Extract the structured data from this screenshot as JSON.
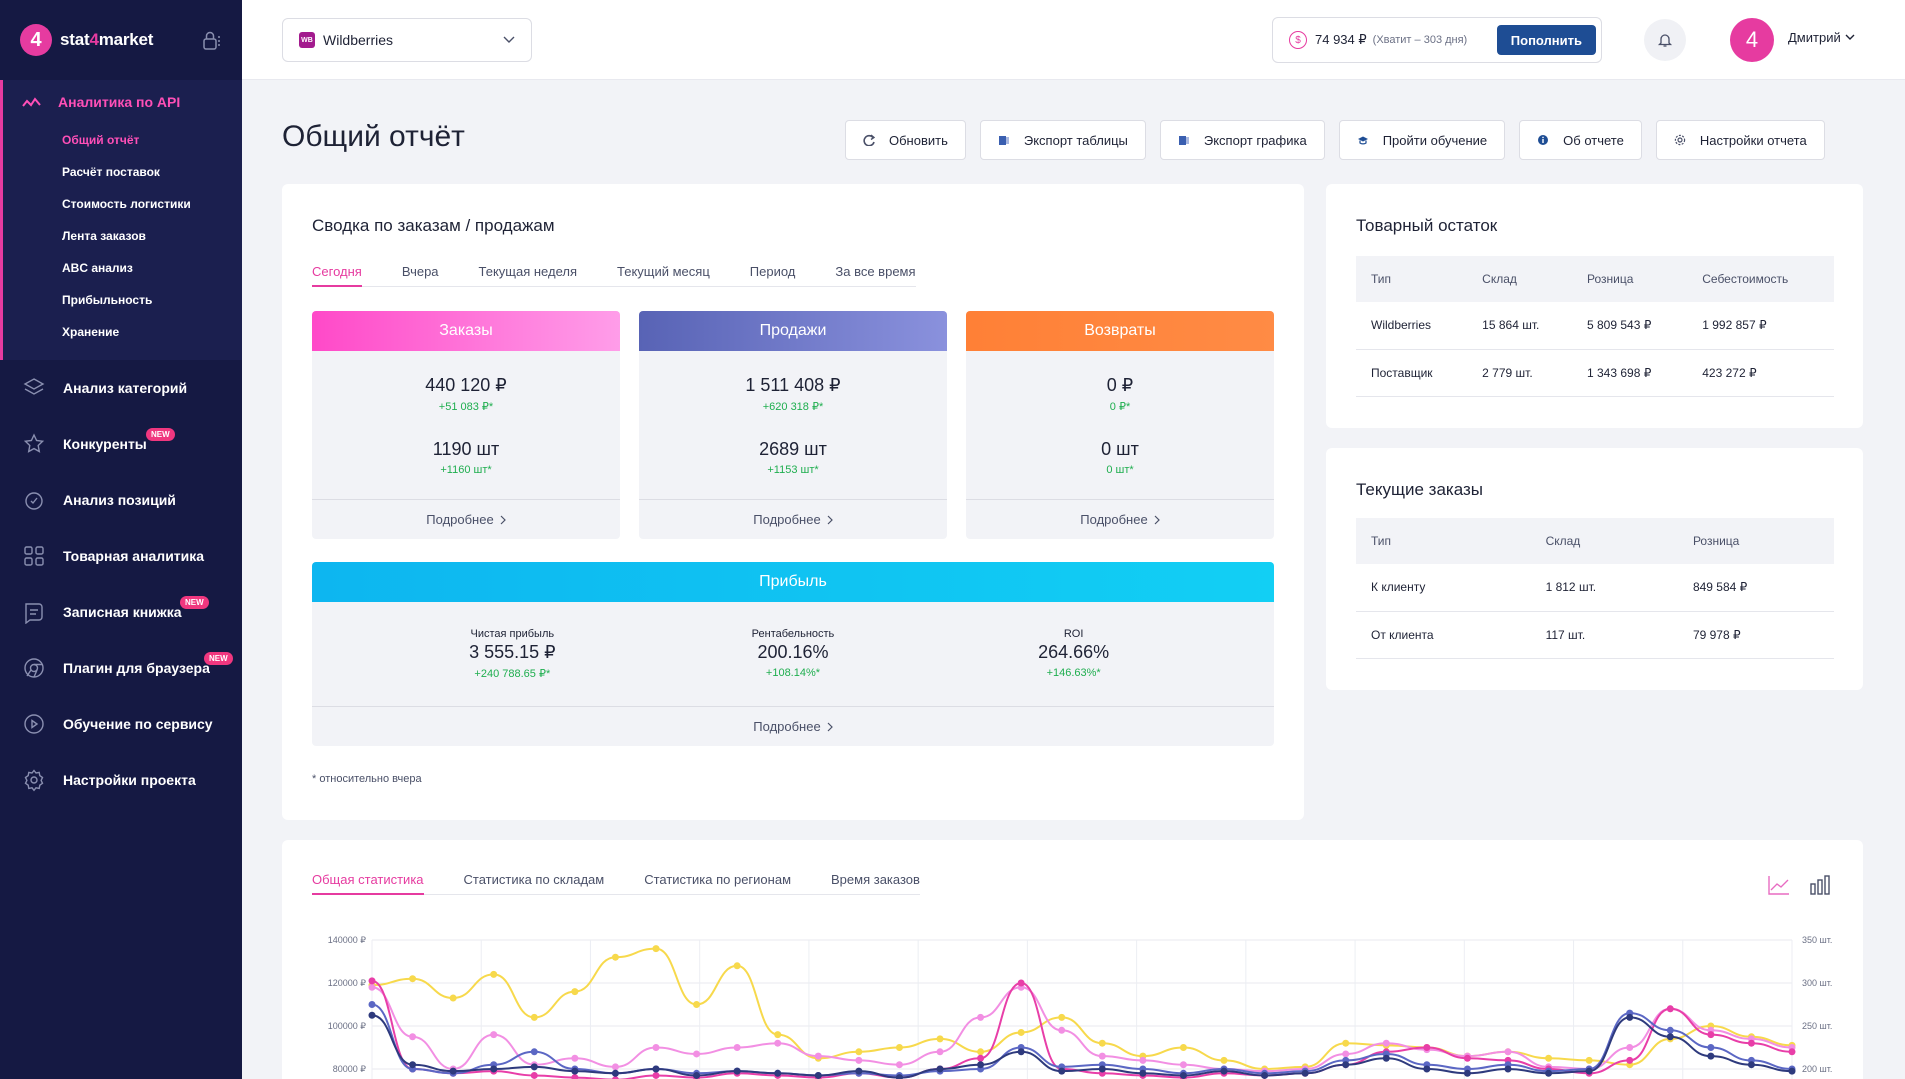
{
  "brand": {
    "mark": "4",
    "name_pre": "stat",
    "name_accent": "4",
    "name_post": "market"
  },
  "sidebar": {
    "active_section": "Аналитика по API",
    "sub_items": [
      "Общий отчёт",
      "Расчёт поставок",
      "Стоимость логистики",
      "Лента заказов",
      "ABC анализ",
      "Прибыльность",
      "Хранение"
    ],
    "items": [
      {
        "label": "Анализ категорий",
        "icon": "layers-icon",
        "badge": ""
      },
      {
        "label": "Конкуренты",
        "icon": "star-icon",
        "badge": "NEW"
      },
      {
        "label": "Анализ позиций",
        "icon": "position-icon",
        "badge": ""
      },
      {
        "label": "Товарная аналитика",
        "icon": "grid-icon",
        "badge": ""
      },
      {
        "label": "Записная книжка",
        "icon": "notebook-icon",
        "badge": "NEW"
      },
      {
        "label": "Плагин для браузера",
        "icon": "chrome-icon",
        "badge": "NEW"
      },
      {
        "label": "Обучение по сервису",
        "icon": "play-icon",
        "badge": ""
      },
      {
        "label": "Настройки проекта",
        "icon": "gear-icon",
        "badge": ""
      }
    ]
  },
  "topbar": {
    "marketplace": "Wildberries",
    "marketplace_badge": "WB",
    "balance": "74 934 ₽",
    "balance_note": "(Хватит – 303 дня)",
    "topup_label": "Пополнить",
    "avatar_initial": "4",
    "user_name": "Дмитрий"
  },
  "page": {
    "title": "Общий отчёт",
    "toolbar": [
      "Обновить",
      "Экспорт таблицы",
      "Экспорт графика",
      "Пройти обучение",
      "Об отчете",
      "Настройки отчета"
    ]
  },
  "summary": {
    "title": "Сводка по заказам / продажам",
    "tabs": [
      "Сегодня",
      "Вчера",
      "Текущая неделя",
      "Текущий месяц",
      "Период",
      "За все время"
    ],
    "active_tab": 0,
    "cards": [
      {
        "title": "Заказы",
        "amount": "440 120 ₽",
        "amount_delta": "+51 083 ₽*",
        "count": "1190 шт",
        "count_delta": "+1160 шт*",
        "more": "Подробнее",
        "color_from": "#ff49c8",
        "color_to": "#ff9de9"
      },
      {
        "title": "Продажи",
        "amount": "1 511 408 ₽",
        "amount_delta": "+620 318 ₽*",
        "count": "2689 шт",
        "count_delta": "+1153 шт*",
        "more": "Подробнее",
        "color_from": "#5863b5",
        "color_to": "#8a91dd"
      },
      {
        "title": "Возвраты",
        "amount": "0 ₽",
        "amount_delta": "0 ₽*",
        "count": "0 шт",
        "count_delta": "0 шт*",
        "more": "Подробнее",
        "color_from": "#ff8036",
        "color_to": "#ff8b45"
      }
    ],
    "profit": {
      "title": "Прибыль",
      "cols": [
        {
          "label": "Чистая прибыль",
          "value": "3 555.15 ₽",
          "delta": "+240 788.65 ₽*"
        },
        {
          "label": "Рентабельность",
          "value": "200.16%",
          "delta": "+108.14%*"
        },
        {
          "label": "ROI",
          "value": "264.66%",
          "delta": "+146.63%*"
        }
      ],
      "more": "Подробнее"
    },
    "footnote": "* относительно вчера"
  },
  "stock": {
    "title": "Товарный остаток",
    "headers": [
      "Тип",
      "Склад",
      "Розница",
      "Себестоимость"
    ],
    "rows": [
      [
        "Wildberries",
        "15 864 шт.",
        "5 809 543 ₽",
        "1 992 857 ₽"
      ],
      [
        "Поставщик",
        "2 779 шт.",
        "1 343 698 ₽",
        "423 272 ₽"
      ]
    ]
  },
  "orders": {
    "title": "Текущие заказы",
    "headers": [
      "Тип",
      "Склад",
      "Розница"
    ],
    "rows": [
      [
        "К клиенту",
        "1 812 шт.",
        "849 584 ₽"
      ],
      [
        "От клиента",
        "117 шт.",
        "79 978 ₽"
      ]
    ]
  },
  "stats": {
    "tabs": [
      "Общая статистика",
      "Статистика по складам",
      "Статистика по регионам",
      "Время заказов"
    ],
    "active_tab": 0
  },
  "chart_data": {
    "type": "line",
    "title": "",
    "y_left_ticks": [
      "140000 ₽",
      "120000 ₽",
      "100000 ₽",
      "80000 ₽"
    ],
    "y_right_ticks": [
      "350 шт.",
      "300 шт.",
      "250 шт.",
      "200 шт."
    ],
    "y_left_range": [
      80000,
      140000
    ],
    "series": [
      {
        "color": "#f7d94c",
        "values": [
          119000,
          122000,
          113000,
          124000,
          104000,
          116000,
          132000,
          136000,
          110000,
          128000,
          96000,
          85000,
          88000,
          90000,
          94000,
          88000,
          97000,
          104000,
          92000,
          86000,
          90000,
          84000,
          80000,
          81000,
          92000,
          91000,
          90000,
          86000,
          88000,
          85000,
          84000,
          82000,
          94000,
          100000,
          95000,
          91000
        ]
      },
      {
        "color": "#f28fe3",
        "values": [
          118000,
          95000,
          80000,
          96000,
          82000,
          85000,
          81000,
          90000,
          87000,
          90000,
          92000,
          86000,
          84000,
          82000,
          88000,
          104000,
          118000,
          98000,
          86000,
          84000,
          82000,
          80000,
          79000,
          80000,
          87000,
          92000,
          89000,
          86000,
          88000,
          81000,
          80000,
          90000,
          108000,
          98000,
          94000,
          90000
        ]
      },
      {
        "color": "#e83ea8",
        "values": [
          121000,
          80000,
          78000,
          79000,
          77000,
          76000,
          75000,
          77000,
          76000,
          78000,
          77000,
          76000,
          78000,
          76000,
          80000,
          85000,
          120000,
          80000,
          78000,
          77000,
          76000,
          78000,
          77000,
          78000,
          82000,
          88000,
          90000,
          85000,
          84000,
          80000,
          78000,
          84000,
          108000,
          96000,
          92000,
          88000
        ]
      },
      {
        "color": "#5b67c4",
        "values": [
          110000,
          80000,
          78000,
          82000,
          88000,
          80000,
          78000,
          80000,
          78000,
          79000,
          78000,
          77000,
          78000,
          77000,
          79000,
          80000,
          90000,
          81000,
          82000,
          80000,
          78000,
          80000,
          78000,
          79000,
          84000,
          87000,
          82000,
          80000,
          82000,
          79000,
          80000,
          106000,
          98000,
          90000,
          84000,
          80000
        ]
      },
      {
        "color": "#2e3a7d",
        "values": [
          105000,
          82000,
          79000,
          80000,
          81000,
          79000,
          78000,
          80000,
          77000,
          79000,
          78000,
          77000,
          79000,
          76000,
          80000,
          82000,
          88000,
          79000,
          80000,
          78000,
          77000,
          79000,
          77000,
          78000,
          82000,
          85000,
          80000,
          78000,
          80000,
          78000,
          79000,
          104000,
          95000,
          86000,
          82000,
          79000
        ]
      }
    ]
  }
}
